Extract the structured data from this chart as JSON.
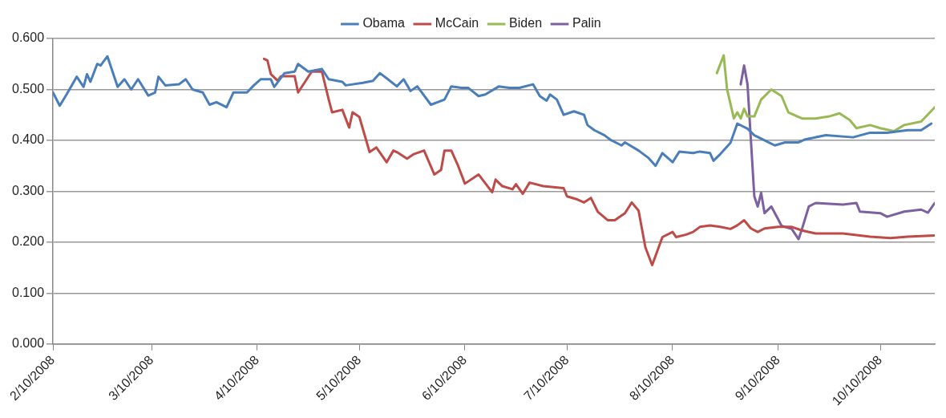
{
  "chart_data": {
    "type": "line",
    "xlim": [
      "2008-02-10",
      "2008-10-26"
    ],
    "xticks": [
      {
        "value": "2008-02-10",
        "label": "2/10/2008"
      },
      {
        "value": "2008-03-10",
        "label": "3/10/2008"
      },
      {
        "value": "2008-04-10",
        "label": "4/10/2008"
      },
      {
        "value": "2008-05-10",
        "label": "5/10/2008"
      },
      {
        "value": "2008-06-10",
        "label": "6/10/2008"
      },
      {
        "value": "2008-07-10",
        "label": "7/10/2008"
      },
      {
        "value": "2008-08-10",
        "label": "8/10/2008"
      },
      {
        "value": "2008-09-10",
        "label": "9/10/2008"
      },
      {
        "value": "2008-10-10",
        "label": "10/10/2008"
      }
    ],
    "ylim": [
      0,
      0.6
    ],
    "yticks": [
      {
        "value": 0,
        "label": "0.000"
      },
      {
        "value": 0.1,
        "label": "0.100"
      },
      {
        "value": 0.2,
        "label": "0.200"
      },
      {
        "value": 0.3,
        "label": "0.300"
      },
      {
        "value": 0.4,
        "label": "0.400"
      },
      {
        "value": 0.5,
        "label": "0.500"
      },
      {
        "value": 0.6,
        "label": "0.600"
      }
    ],
    "grid": "y",
    "legend": "top",
    "line_style": "solid",
    "series": [
      {
        "name": "Obama",
        "color": "#4a7ebb",
        "x": [
          "2008-02-10",
          "2008-02-12",
          "2008-02-14",
          "2008-02-17",
          "2008-02-19",
          "2008-02-20",
          "2008-02-21",
          "2008-02-23",
          "2008-02-24",
          "2008-02-26",
          "2008-02-29",
          "2008-03-02",
          "2008-03-04",
          "2008-03-06",
          "2008-03-09",
          "2008-03-11",
          "2008-03-12",
          "2008-03-14",
          "2008-03-18",
          "2008-03-20",
          "2008-03-22",
          "2008-03-25",
          "2008-03-27",
          "2008-03-29",
          "2008-04-01",
          "2008-04-03",
          "2008-04-07",
          "2008-04-09",
          "2008-04-11",
          "2008-04-14",
          "2008-04-15",
          "2008-04-18",
          "2008-04-21",
          "2008-04-22",
          "2008-04-25",
          "2008-04-29",
          "2008-05-01",
          "2008-05-05",
          "2008-05-06",
          "2008-05-08",
          "2008-05-11",
          "2008-05-14",
          "2008-05-16",
          "2008-05-18",
          "2008-05-21",
          "2008-05-23",
          "2008-05-25",
          "2008-05-27",
          "2008-05-31",
          "2008-06-04",
          "2008-06-06",
          "2008-06-09",
          "2008-06-11",
          "2008-06-14",
          "2008-06-16",
          "2008-06-20",
          "2008-06-23",
          "2008-06-26",
          "2008-06-30",
          "2008-07-02",
          "2008-07-04",
          "2008-07-05",
          "2008-07-07",
          "2008-07-09",
          "2008-07-12",
          "2008-07-15",
          "2008-07-16",
          "2008-07-18",
          "2008-07-21",
          "2008-07-23",
          "2008-07-26",
          "2008-07-27",
          "2008-07-31",
          "2008-08-03",
          "2008-08-05",
          "2008-08-07",
          "2008-08-10",
          "2008-08-12",
          "2008-08-16",
          "2008-08-18",
          "2008-08-21",
          "2008-08-22",
          "2008-08-24",
          "2008-08-27",
          "2008-08-29",
          "2008-09-01",
          "2008-09-03",
          "2008-09-06",
          "2008-09-09",
          "2008-09-12",
          "2008-09-16",
          "2008-09-18",
          "2008-09-24",
          "2008-10-02",
          "2008-10-07",
          "2008-10-12",
          "2008-10-18",
          "2008-10-22",
          "2008-10-25"
        ],
        "values": [
          0.494,
          0.468,
          0.49,
          0.525,
          0.505,
          0.53,
          0.515,
          0.55,
          0.547,
          0.565,
          0.505,
          0.52,
          0.5,
          0.52,
          0.488,
          0.494,
          0.525,
          0.508,
          0.51,
          0.52,
          0.5,
          0.494,
          0.47,
          0.475,
          0.465,
          0.494,
          0.494,
          0.508,
          0.52,
          0.52,
          0.505,
          0.532,
          0.535,
          0.55,
          0.535,
          0.54,
          0.52,
          0.515,
          0.508,
          0.51,
          0.513,
          0.517,
          0.532,
          0.522,
          0.506,
          0.52,
          0.497,
          0.506,
          0.47,
          0.48,
          0.506,
          0.503,
          0.503,
          0.487,
          0.49,
          0.506,
          0.503,
          0.503,
          0.51,
          0.487,
          0.478,
          0.49,
          0.48,
          0.45,
          0.457,
          0.45,
          0.43,
          0.42,
          0.41,
          0.4,
          0.39,
          0.396,
          0.38,
          0.365,
          0.35,
          0.375,
          0.357,
          0.378,
          0.375,
          0.378,
          0.375,
          0.36,
          0.373,
          0.395,
          0.433,
          0.423,
          0.41,
          0.4,
          0.39,
          0.396,
          0.396,
          0.402,
          0.41,
          0.406,
          0.415,
          0.415,
          0.42,
          0.42,
          0.433
        ]
      },
      {
        "name": "McCain",
        "color": "#be4b48",
        "x": [
          "2008-04-12",
          "2008-04-13",
          "2008-04-14",
          "2008-04-16",
          "2008-04-17",
          "2008-04-21",
          "2008-04-22",
          "2008-04-26",
          "2008-04-29",
          "2008-05-01",
          "2008-05-02",
          "2008-05-05",
          "2008-05-07",
          "2008-05-08",
          "2008-05-10",
          "2008-05-13",
          "2008-05-15",
          "2008-05-18",
          "2008-05-20",
          "2008-05-21",
          "2008-05-24",
          "2008-05-26",
          "2008-05-29",
          "2008-06-01",
          "2008-06-03",
          "2008-06-04",
          "2008-06-06",
          "2008-06-08",
          "2008-06-10",
          "2008-06-14",
          "2008-06-18",
          "2008-06-19",
          "2008-06-21",
          "2008-06-24",
          "2008-06-25",
          "2008-06-27",
          "2008-06-29",
          "2008-07-03",
          "2008-07-09",
          "2008-07-10",
          "2008-07-13",
          "2008-07-15",
          "2008-07-17",
          "2008-07-19",
          "2008-07-22",
          "2008-07-24",
          "2008-07-27",
          "2008-07-29",
          "2008-07-31",
          "2008-08-02",
          "2008-08-04",
          "2008-08-07",
          "2008-08-10",
          "2008-08-11",
          "2008-08-14",
          "2008-08-16",
          "2008-08-18",
          "2008-08-21",
          "2008-08-24",
          "2008-08-27",
          "2008-08-29",
          "2008-08-31",
          "2008-09-02",
          "2008-09-04",
          "2008-09-06",
          "2008-09-10",
          "2008-09-14",
          "2008-09-17",
          "2008-09-21",
          "2008-09-29",
          "2008-10-07",
          "2008-10-13",
          "2008-10-18",
          "2008-10-26"
        ],
        "values": [
          0.56,
          0.557,
          0.53,
          0.517,
          0.526,
          0.526,
          0.494,
          0.535,
          0.535,
          0.48,
          0.455,
          0.46,
          0.425,
          0.455,
          0.446,
          0.377,
          0.386,
          0.357,
          0.38,
          0.377,
          0.364,
          0.373,
          0.38,
          0.333,
          0.342,
          0.38,
          0.38,
          0.35,
          0.315,
          0.333,
          0.298,
          0.323,
          0.31,
          0.304,
          0.314,
          0.295,
          0.317,
          0.31,
          0.306,
          0.29,
          0.284,
          0.278,
          0.287,
          0.26,
          0.243,
          0.243,
          0.257,
          0.278,
          0.262,
          0.19,
          0.155,
          0.21,
          0.22,
          0.21,
          0.215,
          0.22,
          0.23,
          0.233,
          0.23,
          0.226,
          0.233,
          0.243,
          0.227,
          0.22,
          0.227,
          0.23,
          0.23,
          0.223,
          0.217,
          0.217,
          0.211,
          0.208,
          0.211,
          0.213
        ]
      },
      {
        "name": "Biden",
        "color": "#98b954",
        "x": [
          "2008-08-23",
          "2008-08-25",
          "2008-08-26",
          "2008-08-28",
          "2008-08-29",
          "2008-08-30",
          "2008-08-31",
          "2008-09-01",
          "2008-09-03",
          "2008-09-05",
          "2008-09-08",
          "2008-09-11",
          "2008-09-13",
          "2008-09-17",
          "2008-09-21",
          "2008-09-25",
          "2008-09-28",
          "2008-10-01",
          "2008-10-03",
          "2008-10-07",
          "2008-10-10",
          "2008-10-14",
          "2008-10-17",
          "2008-10-22",
          "2008-10-26"
        ],
        "values": [
          0.532,
          0.567,
          0.5,
          0.443,
          0.455,
          0.443,
          0.462,
          0.447,
          0.447,
          0.48,
          0.5,
          0.487,
          0.455,
          0.443,
          0.443,
          0.447,
          0.453,
          0.44,
          0.424,
          0.43,
          0.424,
          0.418,
          0.43,
          0.437,
          0.465
        ]
      },
      {
        "name": "Palin",
        "color": "#7d60a0",
        "x": [
          "2008-08-30",
          "2008-08-31",
          "2008-09-01",
          "2008-09-03",
          "2008-09-04",
          "2008-09-05",
          "2008-09-06",
          "2008-09-08",
          "2008-09-10",
          "2008-09-11",
          "2008-09-14",
          "2008-09-16",
          "2008-09-17",
          "2008-09-19",
          "2008-09-21",
          "2008-09-29",
          "2008-10-03",
          "2008-10-04",
          "2008-10-10",
          "2008-10-12",
          "2008-10-17",
          "2008-10-22",
          "2008-10-24",
          "2008-10-26"
        ],
        "values": [
          0.51,
          0.547,
          0.51,
          0.29,
          0.27,
          0.297,
          0.257,
          0.27,
          0.245,
          0.232,
          0.226,
          0.206,
          0.226,
          0.27,
          0.277,
          0.274,
          0.277,
          0.26,
          0.257,
          0.25,
          0.26,
          0.264,
          0.258,
          0.277
        ]
      }
    ]
  }
}
